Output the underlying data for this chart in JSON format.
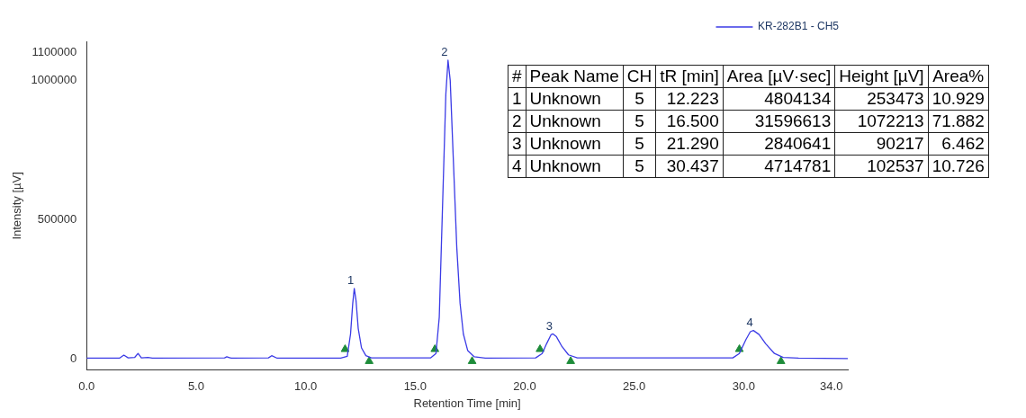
{
  "chart_data": {
    "type": "line",
    "xlabel": "Retention Time [min]",
    "ylabel": "Intensity [µV]",
    "xlim": [
      0,
      34.75
    ],
    "ylim": [
      -40000,
      1140000
    ],
    "xticks": [
      {
        "value": 0,
        "label": "0.0"
      },
      {
        "value": 5,
        "label": "5.0"
      },
      {
        "value": 10,
        "label": "10.0"
      },
      {
        "value": 15,
        "label": "15.0"
      },
      {
        "value": 20,
        "label": "20.0"
      },
      {
        "value": 25,
        "label": "25.0"
      },
      {
        "value": 30,
        "label": "30.0"
      },
      {
        "value": 34,
        "label": "34.0"
      }
    ],
    "yticks": [
      0,
      500000,
      1000000,
      1100000
    ],
    "grid": false,
    "legend": "top right",
    "marker": "none",
    "line_style": "solid",
    "series": [
      {
        "name": "KR-282B1 - CH5",
        "color": "#3b3be6",
        "x": [
          0,
          1.5,
          1.7,
          1.9,
          2.2,
          2.35,
          2.5,
          2.8,
          3.0,
          6.3,
          6.4,
          6.6,
          8.3,
          8.45,
          8.7,
          11.6,
          11.9,
          12.05,
          12.15,
          12.22,
          12.3,
          12.4,
          12.55,
          12.75,
          13.0,
          15.7,
          15.95,
          16.1,
          16.25,
          16.4,
          16.5,
          16.6,
          16.75,
          16.9,
          17.05,
          17.2,
          17.4,
          17.7,
          18.2,
          20.5,
          20.8,
          21.0,
          21.2,
          21.29,
          21.45,
          21.7,
          22.0,
          22.4,
          29.5,
          29.8,
          30.1,
          30.3,
          30.44,
          30.7,
          31.0,
          31.4,
          31.8,
          32.5,
          34.75
        ],
        "values": [
          3000,
          3000,
          14000,
          4000,
          6000,
          20000,
          4000,
          6000,
          3000,
          4000,
          8000,
          3000,
          4000,
          12000,
          3000,
          3000,
          10000,
          90000,
          200000,
          253473,
          210000,
          110000,
          40000,
          12000,
          4000,
          4000,
          20000,
          150000,
          550000,
          950000,
          1072213,
          1000000,
          700000,
          400000,
          200000,
          90000,
          30000,
          8000,
          3000,
          4000,
          20000,
          55000,
          87000,
          90217,
          80000,
          45000,
          15000,
          4000,
          4000,
          20000,
          70000,
          98000,
          102537,
          88000,
          55000,
          20000,
          6000,
          3000,
          2000
        ]
      },
      {
        "type": "scatter",
        "marker": "triangle",
        "color": "#1e8c3a",
        "x": [
          11.8,
          15.9,
          20.7,
          29.8
        ],
        "values": [
          35000,
          35000,
          35000,
          35000
        ]
      },
      {
        "type": "scatter",
        "marker": "triangle",
        "color": "#1e8c3a",
        "x": [
          12.9,
          17.6,
          22.1,
          31.7
        ],
        "values": [
          -8000,
          -8000,
          -8000,
          -8000
        ]
      }
    ],
    "annotations": [
      {
        "text": "1",
        "x": 12.22,
        "y": 253473
      },
      {
        "text": "2",
        "x": 16.5,
        "y": 1072213
      },
      {
        "text": "3",
        "x": 21.29,
        "y": 90217
      },
      {
        "text": "4",
        "x": 30.44,
        "y": 102537
      },
      "#",
      "Peak Name",
      "CH",
      "tR [min]",
      "Area [µV·sec]",
      "Height [µV]",
      "Area%",
      "1",
      "Unknown",
      "5",
      "12.223",
      "4804134",
      "253473",
      "10.929",
      "2",
      "Unknown",
      "5",
      "16.500",
      "31596613",
      "1072213",
      "71.882",
      "3",
      "Unknown",
      "5",
      "21.290",
      "2840641",
      "90217",
      "6.462",
      "4",
      "Unknown",
      "5",
      "30.437",
      "4714781",
      "102537",
      "10.726"
    ]
  }
}
